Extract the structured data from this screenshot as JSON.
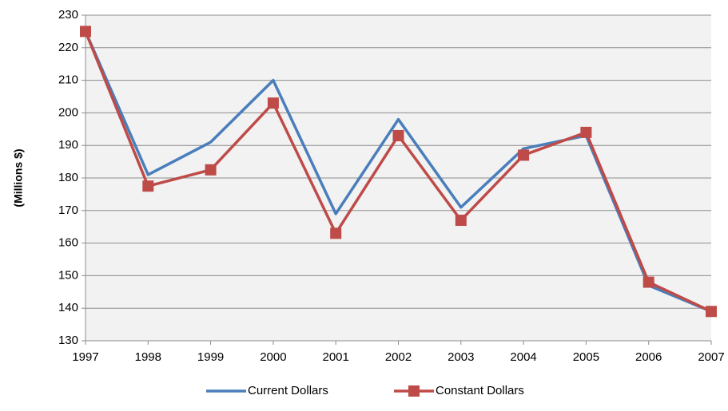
{
  "chart_data": {
    "type": "line",
    "y_label": "(Millions $)",
    "x": [
      1997,
      1998,
      1999,
      2000,
      2001,
      2002,
      2003,
      2004,
      2005,
      2006,
      2007
    ],
    "xlim": [
      1997,
      2007
    ],
    "xticks": [
      1997,
      1998,
      1999,
      2000,
      2001,
      2002,
      2003,
      2004,
      2005,
      2006,
      2007
    ],
    "ylim": [
      130,
      230
    ],
    "yticks": [
      130,
      140,
      150,
      160,
      170,
      180,
      190,
      200,
      210,
      220,
      230
    ],
    "grid": true,
    "legend": "bottom",
    "series": [
      {
        "name": "Current Dollars",
        "color": "#4a7ebb",
        "marker": "none",
        "values": [
          225,
          181,
          191,
          210,
          169,
          198,
          171,
          189,
          193,
          147,
          139
        ]
      },
      {
        "name": "Constant Dollars",
        "color": "#be4b48",
        "marker": "square",
        "values": [
          225,
          177.5,
          182.5,
          203,
          163,
          193,
          167,
          187,
          194,
          148,
          139
        ]
      }
    ]
  }
}
